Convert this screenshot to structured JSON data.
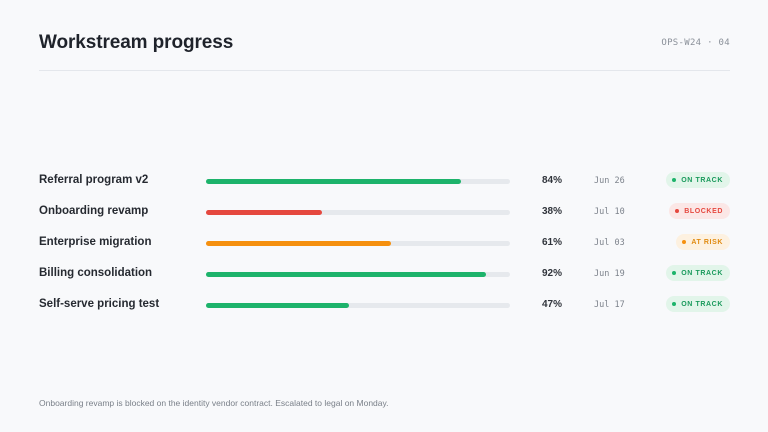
{
  "header": {
    "title": "Workstream progress",
    "code": "OPS-W24 · 04"
  },
  "colors": {
    "green": "#1db36b",
    "red": "#e5483f",
    "orange": "#f5900f",
    "track": "#e6e9ed"
  },
  "status_styles": {
    "on_track": {
      "text": "#1a9a5c",
      "bg": "#e2f5ea",
      "dot": "#1db36b"
    },
    "blocked": {
      "text": "#e5483f",
      "bg": "#fbe7e6",
      "dot": "#e5483f"
    },
    "at_risk": {
      "text": "#e08a10",
      "bg": "#fdf1e0",
      "dot": "#f5900f"
    }
  },
  "workstreams": [
    {
      "name": "Referral program v2",
      "progress": 84,
      "percent_label": "84%",
      "date": "Jun 26",
      "status": "on_track",
      "status_label": "ON TRACK",
      "bar_color": "#1db36b"
    },
    {
      "name": "Onboarding revamp",
      "progress": 38,
      "percent_label": "38%",
      "date": "Jul 10",
      "status": "blocked",
      "status_label": "BLOCKED",
      "bar_color": "#e5483f"
    },
    {
      "name": "Enterprise migration",
      "progress": 61,
      "percent_label": "61%",
      "date": "Jul 03",
      "status": "at_risk",
      "status_label": "AT RISK",
      "bar_color": "#f5900f"
    },
    {
      "name": "Billing consolidation",
      "progress": 92,
      "percent_label": "92%",
      "date": "Jun 19",
      "status": "on_track",
      "status_label": "ON TRACK",
      "bar_color": "#1db36b"
    },
    {
      "name": "Self-serve pricing test",
      "progress": 47,
      "percent_label": "47%",
      "date": "Jul 17",
      "status": "on_track",
      "status_label": "ON TRACK",
      "bar_color": "#1db36b"
    }
  ],
  "footnote": "Onboarding revamp is blocked on the identity vendor contract. Escalated to legal on Monday."
}
